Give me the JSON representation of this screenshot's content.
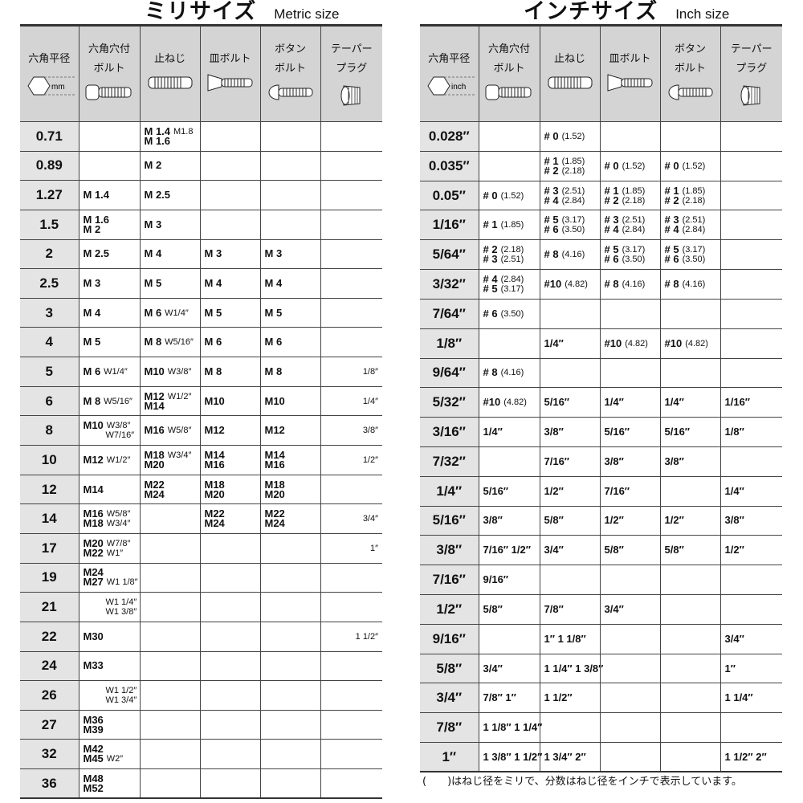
{
  "metric": {
    "title": "ミリサイズ",
    "subtitle": "Metric size",
    "headers": [
      "六角平径",
      "六角穴付\nボルト",
      "止ねじ",
      "皿ボルト",
      "ボタン\nボルト",
      "テーパー\nプラグ"
    ],
    "unit": "mm",
    "rows": [
      {
        "hex": "0.71",
        "cells": [
          [],
          [
            [
              "M 1.4",
              "M1.8"
            ],
            [
              "M 1.6",
              ""
            ]
          ],
          [],
          [],
          []
        ]
      },
      {
        "hex": "0.89",
        "cells": [
          [],
          [
            [
              "M 2",
              ""
            ]
          ],
          [],
          [],
          []
        ]
      },
      {
        "hex": "1.27",
        "cells": [
          [
            [
              "M 1.4",
              ""
            ]
          ],
          [
            [
              "M 2.5",
              ""
            ]
          ],
          [],
          [],
          []
        ]
      },
      {
        "hex": "1.5",
        "cells": [
          [
            [
              "M 1.6",
              ""
            ],
            [
              "M 2",
              ""
            ]
          ],
          [
            [
              "M 3",
              ""
            ]
          ],
          [],
          [],
          []
        ]
      },
      {
        "hex": "2",
        "cells": [
          [
            [
              "M 2.5",
              ""
            ]
          ],
          [
            [
              "M 4",
              ""
            ]
          ],
          [
            [
              "M 3",
              ""
            ]
          ],
          [
            [
              "M 3",
              ""
            ]
          ],
          []
        ]
      },
      {
        "hex": "2.5",
        "cells": [
          [
            [
              "M 3",
              ""
            ]
          ],
          [
            [
              "M 5",
              ""
            ]
          ],
          [
            [
              "M 4",
              ""
            ]
          ],
          [
            [
              "M 4",
              ""
            ]
          ],
          []
        ]
      },
      {
        "hex": "3",
        "cells": [
          [
            [
              "M 4",
              ""
            ]
          ],
          [
            [
              "M 6",
              "W1/4″"
            ]
          ],
          [
            [
              "M 5",
              ""
            ]
          ],
          [
            [
              "M 5",
              ""
            ]
          ],
          []
        ]
      },
      {
        "hex": "4",
        "cells": [
          [
            [
              "M 5",
              ""
            ]
          ],
          [
            [
              "M 8",
              "W5/16″"
            ]
          ],
          [
            [
              "M 6",
              ""
            ]
          ],
          [
            [
              "M 6",
              ""
            ]
          ],
          []
        ]
      },
      {
        "hex": "5",
        "cells": [
          [
            [
              "M 6",
              "W1/4″"
            ]
          ],
          [
            [
              "M10",
              "W3/8″"
            ]
          ],
          [
            [
              "M 8",
              ""
            ]
          ],
          [
            [
              "M 8",
              ""
            ]
          ],
          [
            [
              "",
              "1/8″"
            ]
          ]
        ]
      },
      {
        "hex": "6",
        "cells": [
          [
            [
              "M 8",
              "W5/16″"
            ]
          ],
          [
            [
              "M12",
              "W1/2″"
            ],
            [
              "M14",
              ""
            ]
          ],
          [
            [
              "M10",
              ""
            ]
          ],
          [
            [
              "M10",
              ""
            ]
          ],
          [
            [
              "",
              "1/4″"
            ]
          ]
        ]
      },
      {
        "hex": "8",
        "cells": [
          [
            [
              "M10",
              "W3/8″"
            ],
            [
              "",
              "W7/16″"
            ]
          ],
          [
            [
              "M16",
              "W5/8″"
            ]
          ],
          [
            [
              "M12",
              ""
            ]
          ],
          [
            [
              "M12",
              ""
            ]
          ],
          [
            [
              "",
              "3/8″"
            ]
          ]
        ]
      },
      {
        "hex": "10",
        "cells": [
          [
            [
              "M12",
              "W1/2″"
            ]
          ],
          [
            [
              "M18",
              "W3/4″"
            ],
            [
              "M20",
              ""
            ]
          ],
          [
            [
              "M14",
              ""
            ],
            [
              "M16",
              ""
            ]
          ],
          [
            [
              "M14",
              ""
            ],
            [
              "M16",
              ""
            ]
          ],
          [
            [
              "",
              "1/2″"
            ]
          ]
        ]
      },
      {
        "hex": "12",
        "cells": [
          [
            [
              "M14",
              ""
            ]
          ],
          [
            [
              "M22",
              ""
            ],
            [
              "M24",
              ""
            ]
          ],
          [
            [
              "M18",
              ""
            ],
            [
              "M20",
              ""
            ]
          ],
          [
            [
              "M18",
              ""
            ],
            [
              "M20",
              ""
            ]
          ],
          []
        ]
      },
      {
        "hex": "14",
        "cells": [
          [
            [
              "M16",
              "W5/8″"
            ],
            [
              "M18",
              "W3/4″"
            ]
          ],
          [],
          [
            [
              "M22",
              ""
            ],
            [
              "M24",
              ""
            ]
          ],
          [
            [
              "M22",
              ""
            ],
            [
              "M24",
              ""
            ]
          ],
          [
            [
              "",
              "3/4″"
            ]
          ]
        ]
      },
      {
        "hex": "17",
        "cells": [
          [
            [
              "M20",
              "W7/8″"
            ],
            [
              "M22",
              "W1″"
            ]
          ],
          [],
          [],
          [],
          [
            [
              "",
              "1″"
            ]
          ]
        ]
      },
      {
        "hex": "19",
        "cells": [
          [
            [
              "M24",
              ""
            ],
            [
              "M27",
              "W1 1/8″"
            ]
          ],
          [],
          [],
          [],
          []
        ]
      },
      {
        "hex": "21",
        "cells": [
          [
            [
              "",
              "W1 1/4″"
            ],
            [
              "",
              "W1 3/8″"
            ]
          ],
          [],
          [],
          [],
          []
        ]
      },
      {
        "hex": "22",
        "cells": [
          [
            [
              "M30",
              ""
            ]
          ],
          [],
          [],
          [],
          [
            [
              "",
              "1 1/2″"
            ]
          ]
        ]
      },
      {
        "hex": "24",
        "cells": [
          [
            [
              "M33",
              ""
            ]
          ],
          [],
          [],
          [],
          []
        ]
      },
      {
        "hex": "26",
        "cells": [
          [
            [
              "",
              "W1 1/2″"
            ],
            [
              "",
              "W1 3/4″"
            ]
          ],
          [],
          [],
          [],
          []
        ]
      },
      {
        "hex": "27",
        "cells": [
          [
            [
              "M36",
              ""
            ],
            [
              "M39",
              ""
            ]
          ],
          [],
          [],
          [],
          []
        ]
      },
      {
        "hex": "32",
        "cells": [
          [
            [
              "M42",
              ""
            ],
            [
              "M45",
              "W2″"
            ]
          ],
          [],
          [],
          [],
          []
        ]
      },
      {
        "hex": "36",
        "cells": [
          [
            [
              "M48",
              ""
            ],
            [
              "M52",
              ""
            ]
          ],
          [],
          [],
          [],
          []
        ]
      }
    ]
  },
  "inch": {
    "title": "インチサイズ",
    "subtitle": "Inch size",
    "headers": [
      "六角平径",
      "六角穴付\nボルト",
      "止ねじ",
      "皿ボルト",
      "ボタン\nボルト",
      "テーパー\nプラグ"
    ],
    "unit": "inch",
    "rows": [
      {
        "hex": "0.028″",
        "cells": [
          [],
          [
            [
              "# 0",
              "(1.52)"
            ]
          ],
          [],
          [],
          []
        ]
      },
      {
        "hex": "0.035″",
        "cells": [
          [],
          [
            [
              "# 1",
              "(1.85)"
            ],
            [
              "# 2",
              "(2.18)"
            ]
          ],
          [
            [
              "# 0",
              "(1.52)"
            ]
          ],
          [
            [
              "# 0",
              "(1.52)"
            ]
          ],
          []
        ]
      },
      {
        "hex": "0.05″",
        "cells": [
          [
            [
              "# 0",
              "(1.52)"
            ]
          ],
          [
            [
              "# 3",
              "(2.51)"
            ],
            [
              "# 4",
              "(2.84)"
            ]
          ],
          [
            [
              "# 1",
              "(1.85)"
            ],
            [
              "# 2",
              "(2.18)"
            ]
          ],
          [
            [
              "# 1",
              "(1.85)"
            ],
            [
              "# 2",
              "(2.18)"
            ]
          ],
          []
        ]
      },
      {
        "hex": "1/16″",
        "cells": [
          [
            [
              "# 1",
              "(1.85)"
            ]
          ],
          [
            [
              "# 5",
              "(3.17)"
            ],
            [
              "# 6",
              "(3.50)"
            ]
          ],
          [
            [
              "# 3",
              "(2.51)"
            ],
            [
              "# 4",
              "(2.84)"
            ]
          ],
          [
            [
              "# 3",
              "(2.51)"
            ],
            [
              "# 4",
              "(2.84)"
            ]
          ],
          []
        ]
      },
      {
        "hex": "5/64″",
        "cells": [
          [
            [
              "# 2",
              "(2.18)"
            ],
            [
              "# 3",
              "(2.51)"
            ]
          ],
          [
            [
              "# 8",
              "(4.16)"
            ]
          ],
          [
            [
              "# 5",
              "(3.17)"
            ],
            [
              "# 6",
              "(3.50)"
            ]
          ],
          [
            [
              "# 5",
              "(3.17)"
            ],
            [
              "# 6",
              "(3.50)"
            ]
          ],
          []
        ]
      },
      {
        "hex": "3/32″",
        "cells": [
          [
            [
              "# 4",
              "(2.84)"
            ],
            [
              "# 5",
              "(3.17)"
            ]
          ],
          [
            [
              "#10",
              "(4.82)"
            ]
          ],
          [
            [
              "# 8",
              "(4.16)"
            ]
          ],
          [
            [
              "# 8",
              "(4.16)"
            ]
          ],
          []
        ]
      },
      {
        "hex": "7/64″",
        "cells": [
          [
            [
              "# 6",
              "(3.50)"
            ]
          ],
          [],
          [],
          [],
          []
        ]
      },
      {
        "hex": "1/8″",
        "cells": [
          [],
          [
            [
              "1/4″",
              ""
            ]
          ],
          [
            [
              "#10",
              "(4.82)"
            ]
          ],
          [
            [
              "#10",
              "(4.82)"
            ]
          ],
          []
        ]
      },
      {
        "hex": "9/64″",
        "cells": [
          [
            [
              "# 8",
              "(4.16)"
            ]
          ],
          [],
          [],
          [],
          []
        ]
      },
      {
        "hex": "5/32″",
        "cells": [
          [
            [
              "#10",
              "(4.82)"
            ]
          ],
          [
            [
              "5/16″",
              ""
            ]
          ],
          [
            [
              "1/4″",
              ""
            ]
          ],
          [
            [
              "1/4″",
              ""
            ]
          ],
          [
            [
              "1/16″",
              ""
            ]
          ]
        ]
      },
      {
        "hex": "3/16″",
        "cells": [
          [
            [
              "1/4″",
              ""
            ]
          ],
          [
            [
              "3/8″",
              ""
            ]
          ],
          [
            [
              "5/16″",
              ""
            ]
          ],
          [
            [
              "5/16″",
              ""
            ]
          ],
          [
            [
              "1/8″",
              ""
            ]
          ]
        ]
      },
      {
        "hex": "7/32″",
        "cells": [
          [],
          [
            [
              "7/16″",
              ""
            ]
          ],
          [
            [
              "3/8″",
              ""
            ]
          ],
          [
            [
              "3/8″",
              ""
            ]
          ],
          []
        ]
      },
      {
        "hex": "1/4″",
        "cells": [
          [
            [
              "5/16″",
              ""
            ]
          ],
          [
            [
              "1/2″",
              ""
            ]
          ],
          [
            [
              "7/16″",
              ""
            ]
          ],
          [],
          [
            [
              "1/4″",
              ""
            ]
          ]
        ]
      },
      {
        "hex": "5/16″",
        "cells": [
          [
            [
              "3/8″",
              ""
            ]
          ],
          [
            [
              "5/8″",
              ""
            ]
          ],
          [
            [
              "1/2″",
              ""
            ]
          ],
          [
            [
              "1/2″",
              ""
            ]
          ],
          [
            [
              "3/8″",
              ""
            ]
          ]
        ]
      },
      {
        "hex": "3/8″",
        "cells": [
          [
            [
              "7/16″ 1/2″",
              ""
            ]
          ],
          [
            [
              "3/4″",
              ""
            ]
          ],
          [
            [
              "5/8″",
              ""
            ]
          ],
          [
            [
              "5/8″",
              ""
            ]
          ],
          [
            [
              "1/2″",
              ""
            ]
          ]
        ]
      },
      {
        "hex": "7/16″",
        "cells": [
          [
            [
              "9/16″",
              ""
            ]
          ],
          [],
          [],
          [],
          []
        ]
      },
      {
        "hex": "1/2″",
        "cells": [
          [
            [
              "5/8″",
              ""
            ]
          ],
          [
            [
              "7/8″",
              ""
            ]
          ],
          [
            [
              "3/4″",
              ""
            ]
          ],
          [],
          []
        ]
      },
      {
        "hex": "9/16″",
        "cells": [
          [],
          [
            [
              "1″  1 1/8″",
              ""
            ]
          ],
          [],
          [],
          [
            [
              "3/4″",
              ""
            ]
          ]
        ]
      },
      {
        "hex": "5/8″",
        "cells": [
          [
            [
              "3/4″",
              ""
            ]
          ],
          [
            [
              "1 1/4″ 1 3/8″",
              ""
            ]
          ],
          [],
          [],
          [
            [
              "  1″",
              ""
            ]
          ]
        ]
      },
      {
        "hex": "3/4″",
        "cells": [
          [
            [
              "7/8″  1″",
              ""
            ]
          ],
          [
            [
              "1 1/2″",
              ""
            ]
          ],
          [],
          [],
          [
            [
              "1 1/4″",
              ""
            ]
          ]
        ]
      },
      {
        "hex": "7/8″",
        "cells": [
          [
            [
              "1 1/8″ 1 1/4″",
              ""
            ]
          ],
          [],
          [],
          [],
          []
        ]
      },
      {
        "hex": "1″",
        "cells": [
          [
            [
              "1 3/8″ 1 1/2″",
              ""
            ]
          ],
          [
            [
              "1 3/4″  2″",
              ""
            ]
          ],
          [],
          [],
          [
            [
              "1 1/2″  2″",
              ""
            ]
          ]
        ]
      }
    ]
  },
  "footnote": "(　　)はねじ径をミリで、分数はねじ径をインチで表示しています。",
  "colors": {
    "header_bg": "#d4d4d4",
    "hex_col_bg": "#e4e4e4",
    "border": "#444444"
  }
}
